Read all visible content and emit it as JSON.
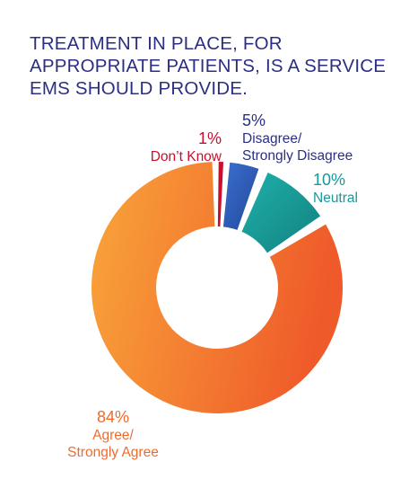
{
  "title_lines": [
    "TREATMENT IN PLACE, FOR",
    "APPROPRIATE PATIENTS, IS A SERVICE",
    "EMS SHOULD PROVIDE."
  ],
  "chart_data": {
    "type": "pie",
    "variant": "donut",
    "title": "TREATMENT IN PLACE, FOR APPROPRIATE PATIENTS, IS A SERVICE EMS SHOULD PROVIDE.",
    "slices": [
      {
        "name": "Don't Know",
        "pct_label": "1%",
        "label_lines": [
          "Don’t Know"
        ],
        "value": 1,
        "color": "#c8102e",
        "text_color": "#c8102e"
      },
      {
        "name": "Disagree/Strongly Disagree",
        "pct_label": "5%",
        "label_lines": [
          "Disagree/",
          "Strongly Disagree"
        ],
        "value": 5,
        "color": "#2a5bb5",
        "text_color": "#2b2f84"
      },
      {
        "name": "Neutral",
        "pct_label": "10%",
        "label_lines": [
          "Neutral"
        ],
        "value": 10,
        "color": "#1b9a9a",
        "text_color": "#15999c"
      },
      {
        "name": "Agree/Strongly Agree",
        "pct_label": "84%",
        "label_lines": [
          "Agree/",
          "Strongly Agree"
        ],
        "value": 84,
        "color": "#f47b25",
        "text_color": "#ef6b2c"
      }
    ]
  }
}
